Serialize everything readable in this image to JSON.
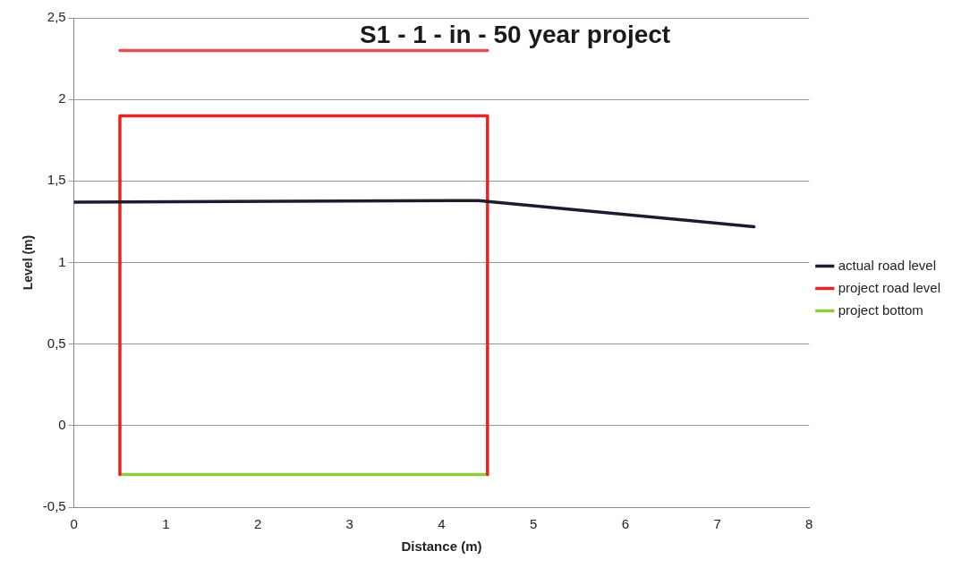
{
  "chart_data": {
    "type": "line",
    "title": "S1 - 1 - in - 50 year project",
    "xlabel": "Distance (m)",
    "ylabel": "Level (m)",
    "xlim": [
      0,
      8
    ],
    "xticks": [
      0,
      1,
      2,
      3,
      4,
      5,
      6,
      7,
      8
    ],
    "ylim": [
      -0.5,
      2.5
    ],
    "yticks": [
      {
        "value": -0.5,
        "label": "-0,5"
      },
      0,
      {
        "value": 0.5,
        "label": "0,5"
      },
      1,
      {
        "value": 1.5,
        "label": "1,5"
      },
      2,
      {
        "value": 2.5,
        "label": "2,5"
      }
    ],
    "grid": "y",
    "legend": "right",
    "marker": "none",
    "line_style": "solid",
    "series": [
      {
        "name": "actual road level",
        "color": "#1c1c2c",
        "x": [
          0,
          4.4,
          7.4
        ],
        "values": [
          1.37,
          1.38,
          1.22
        ]
      },
      {
        "name": "project road level",
        "color": "#e52525",
        "x": [
          0.5,
          0.5,
          4.5,
          4.5
        ],
        "values": [
          -0.3,
          1.9,
          1.9,
          -0.3
        ]
      },
      {
        "name": "project bottom",
        "color": "#92c83e",
        "x": [
          0.5,
          4.5
        ],
        "values": [
          -0.3,
          -0.3
        ]
      },
      {
        "color": "#e05050",
        "x": [
          0.5,
          4.5
        ],
        "values": [
          2.3,
          2.3
        ]
      }
    ]
  }
}
